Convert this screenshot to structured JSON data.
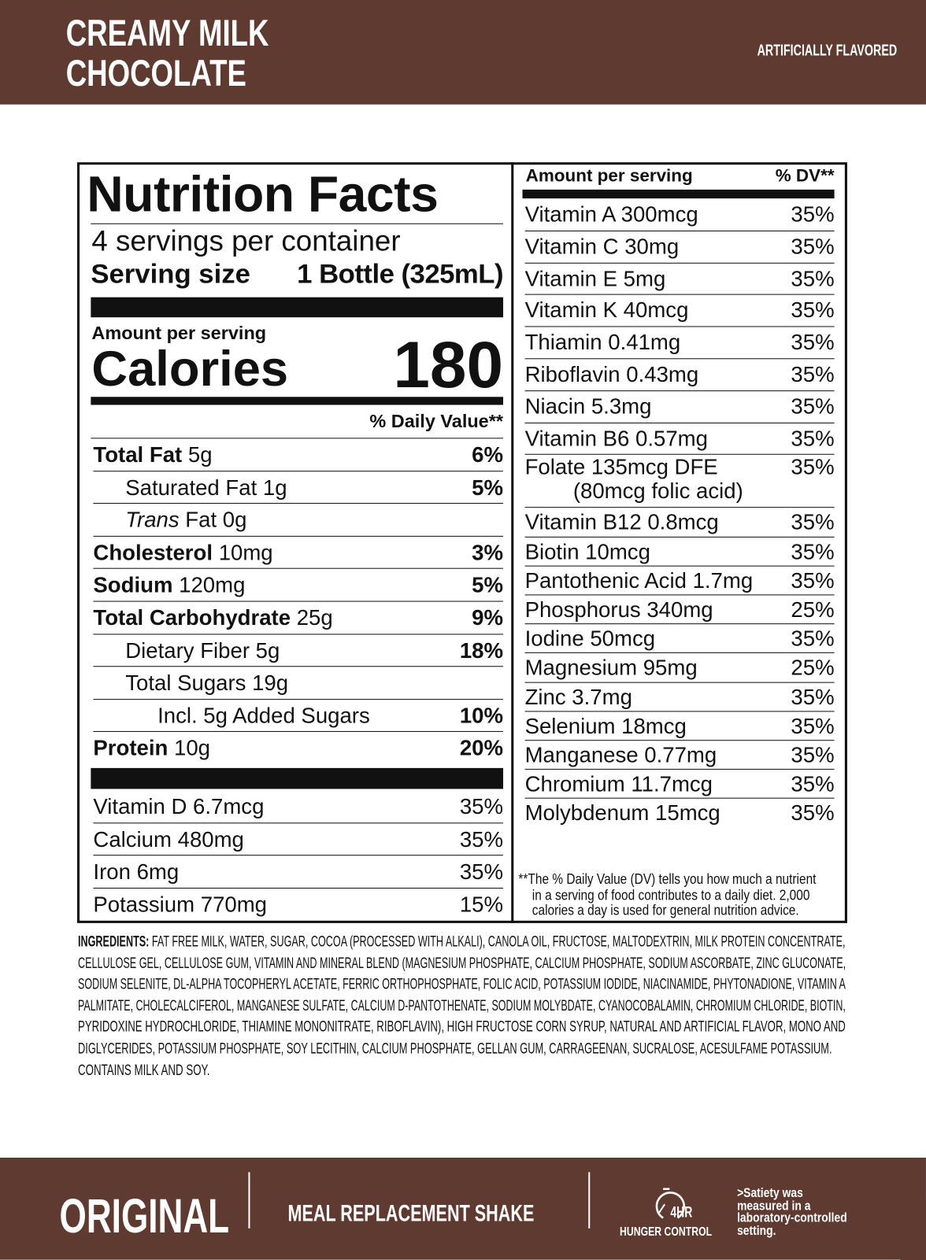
{
  "header": {
    "title_line1": "CREAMY MILK",
    "title_line2": "CHOCOLATE",
    "flavor_note": "ARTIFICIALLY FLAVORED",
    "bg_color": "#5e3a31"
  },
  "facts": {
    "title": "Nutrition Facts",
    "servings": "4 servings per container",
    "serving_size_label": "Serving size",
    "serving_size_value": "1 Bottle (325mL)",
    "amount_per_serving": "Amount per serving",
    "calories_label": "Calories",
    "calories_value": "180",
    "dv_header": "% Daily Value**",
    "nutrients": [
      {
        "bold": "Total Fat",
        "rest": " 5g",
        "dv": "6%",
        "indent": 0
      },
      {
        "bold": "",
        "rest": "Saturated Fat 1g",
        "dv": "5%",
        "indent": 1
      },
      {
        "bold": "",
        "italic": "Trans",
        "rest": " Fat 0g",
        "dv": "",
        "indent": 1
      },
      {
        "bold": "Cholesterol",
        "rest": " 10mg",
        "dv": "3%",
        "indent": 0
      },
      {
        "bold": "Sodium",
        "rest": " 120mg",
        "dv": "5%",
        "indent": 0
      },
      {
        "bold": "Total Carbohydrate",
        "rest": " 25g",
        "dv": "9%",
        "indent": 0
      },
      {
        "bold": "",
        "rest": "Dietary Fiber 5g",
        "dv": "18%",
        "indent": 1
      },
      {
        "bold": "",
        "rest": "Total Sugars 19g",
        "dv": "",
        "indent": 1
      },
      {
        "bold": "",
        "rest": "Incl. 5g Added Sugars",
        "dv": "10%",
        "indent": 2
      },
      {
        "bold": "Protein",
        "rest": " 10g",
        "dv": "20%",
        "indent": 0
      }
    ],
    "vitamins": [
      {
        "name": "Vitamin D 6.7mcg",
        "dv": "35%"
      },
      {
        "name": "Calcium 480mg",
        "dv": "35%"
      },
      {
        "name": "Iron 6mg",
        "dv": "35%"
      },
      {
        "name": "Potassium 770mg",
        "dv": "15%"
      }
    ]
  },
  "right": {
    "amount_header": "Amount per serving",
    "dv_header": "% DV**",
    "rows": [
      {
        "name": "Vitamin A 300mcg",
        "dv": "35%"
      },
      {
        "name": "Vitamin C 30mg",
        "dv": "35%"
      },
      {
        "name": "Vitamin E 5mg",
        "dv": "35%"
      },
      {
        "name": "Vitamin K 40mcg",
        "dv": "35%"
      },
      {
        "name": "Thiamin 0.41mg",
        "dv": "35%"
      },
      {
        "name": "Riboflavin 0.43mg",
        "dv": "35%"
      },
      {
        "name": "Niacin 5.3mg",
        "dv": "35%"
      },
      {
        "name": "Vitamin B6 0.57mg",
        "dv": "35%"
      },
      {
        "name": "Folate 135mcg DFE",
        "sub": "(80mcg folic acid)",
        "dv": "35%"
      },
      {
        "name": "Vitamin B12 0.8mcg",
        "dv": "35%"
      },
      {
        "name": "Biotin 10mcg",
        "dv": "35%"
      },
      {
        "name": "Pantothenic Acid 1.7mg",
        "dv": "35%"
      },
      {
        "name": "Phosphorus 340mg",
        "dv": "25%"
      },
      {
        "name": "Iodine 50mcg",
        "dv": "35%"
      },
      {
        "name": "Magnesium 95mg",
        "dv": "25%"
      },
      {
        "name": "Zinc 3.7mg",
        "dv": "35%"
      },
      {
        "name": "Selenium 18mcg",
        "dv": "35%"
      },
      {
        "name": "Manganese 0.77mg",
        "dv": "35%"
      },
      {
        "name": "Chromium 11.7mcg",
        "dv": "35%"
      },
      {
        "name": "Molybdenum 15mcg",
        "dv": "35%"
      }
    ],
    "footnote_lines": [
      "**The % Daily Value (DV) tells you how much a nutrient",
      "in a serving of food contributes to a daily diet. 2,000",
      "calories a day is used for general nutrition advice."
    ]
  },
  "ingredients": {
    "label": "INGREDIENTS:",
    "lines": [
      " FAT FREE MILK, WATER, SUGAR, COCOA (PROCESSED WITH ALKALI), CANOLA OIL, FRUCTOSE, MALTODEXTRIN, MILK PROTEIN CONCENTRATE,",
      "CELLULOSE GEL, CELLULOSE GUM, VITAMIN AND MINERAL BLEND (MAGNESIUM PHOSPHATE, CALCIUM PHOSPHATE, SODIUM ASCORBATE, ZINC GLUCONATE,",
      "SODIUM SELENITE, DL-ALPHA TOCOPHERYL ACETATE, FERRIC ORTHOPHOSPHATE, FOLIC ACID, POTASSIUM IODIDE, NIACINAMIDE, PHYTONADIONE, VITAMIN A",
      "PALMITATE, CHOLECALCIFEROL, MANGANESE SULFATE, CALCIUM D-PANTOTHENATE, SODIUM MOLYBDATE, CYANOCOBALAMIN, CHROMIUM CHLORIDE, BIOTIN,",
      "PYRIDOXINE HYDROCHLORIDE, THIAMINE MONONITRATE, RIBOFLAVIN), HIGH FRUCTOSE CORN SYRUP, NATURAL AND ARTIFICIAL FLAVOR, MONO AND",
      "DIGLYCERIDES, POTASSIUM PHOSPHATE, SOY LECITHIN, CALCIUM PHOSPHATE, GELLAN GUM, CARRAGEENAN, SUCRALOSE, ACESULFAME POTASSIUM.",
      "CONTAINS MILK AND SOY."
    ]
  },
  "footer": {
    "variant": "ORIGINAL",
    "product_type": "MEAL REPLACEMENT SHAKE",
    "clock_label": "4HR",
    "hunger_control": "HUNGER CONTROL",
    "satiety_lines": [
      ">Satiety was",
      "measured in a",
      "laboratory-controlled",
      "setting."
    ],
    "clock_icon": "clock-icon"
  }
}
